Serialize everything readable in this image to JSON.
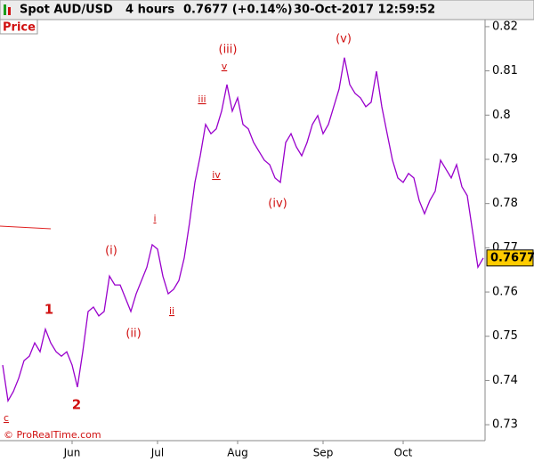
{
  "chart_data": {
    "type": "line",
    "title": "Spot AUD/USD",
    "timeframe": "4 hours",
    "quote": "0.7677 (+0.14%)",
    "timestamp": "30-Oct-2017 12:59:52",
    "panel_label": "Price",
    "footer": "© ProRealTime.com",
    "current_price": 0.7677,
    "categories": [
      null,
      null,
      null,
      null,
      null,
      null,
      null,
      null,
      null,
      null,
      null,
      null,
      null,
      "Jun",
      null,
      null,
      null,
      null,
      null,
      null,
      null,
      null,
      null,
      null,
      null,
      null,
      null,
      null,
      null,
      "Jul",
      null,
      null,
      null,
      null,
      null,
      null,
      null,
      null,
      null,
      null,
      null,
      null,
      null,
      null,
      "Aug",
      null,
      null,
      null,
      null,
      null,
      null,
      null,
      null,
      null,
      null,
      null,
      null,
      null,
      null,
      null,
      "Sep",
      null,
      null,
      null,
      null,
      null,
      null,
      null,
      null,
      null,
      null,
      null,
      null,
      null,
      null,
      "Oct",
      null,
      null,
      null,
      null,
      null,
      null,
      null,
      null,
      null,
      null,
      null,
      null,
      null,
      null,
      null
    ],
    "series": [
      {
        "name": "AUD/USD",
        "color": "#9900cc",
        "values": [
          0.7435,
          0.7354,
          0.7375,
          0.7405,
          0.7445,
          0.7455,
          0.7485,
          0.7465,
          0.7516,
          0.7485,
          0.7465,
          0.7455,
          0.7465,
          0.7435,
          0.7385,
          0.7465,
          0.7556,
          0.7566,
          0.7546,
          0.7556,
          0.7636,
          0.7616,
          0.7616,
          0.7586,
          0.7556,
          0.7596,
          0.7626,
          0.7656,
          0.7707,
          0.7697,
          0.7636,
          0.7596,
          0.7606,
          0.7626,
          0.7677,
          0.7757,
          0.7848,
          0.7908,
          0.7979,
          0.7958,
          0.7969,
          0.8009,
          0.8069,
          0.8009,
          0.8039,
          0.7979,
          0.7969,
          0.7938,
          0.7918,
          0.7898,
          0.7888,
          0.7858,
          0.7848,
          0.7938,
          0.7958,
          0.7928,
          0.7908,
          0.7938,
          0.7979,
          0.7999,
          0.7958,
          0.7979,
          0.8019,
          0.8059,
          0.813,
          0.8069,
          0.8049,
          0.8039,
          0.8019,
          0.8029,
          0.8099,
          0.8019,
          0.7958,
          0.7898,
          0.7858,
          0.7848,
          0.7868,
          0.7858,
          0.7807,
          0.7777,
          0.7807,
          0.7828,
          0.7898,
          0.7878,
          0.7858,
          0.7888,
          0.7838,
          0.7818,
          0.7737,
          0.7656,
          0.7677
        ]
      }
    ],
    "ylim": [
      0.7264,
      0.822
    ],
    "yticks": [
      0.73,
      0.74,
      0.75,
      0.76,
      0.77,
      0.78,
      0.79,
      0.8,
      0.81,
      0.82
    ],
    "annotations": [
      "c",
      "1",
      "2",
      "(i)",
      "(ii)",
      "i",
      "ii",
      "iii",
      "iv",
      "v",
      "(iii)",
      "(iv)",
      "(v)"
    ]
  }
}
